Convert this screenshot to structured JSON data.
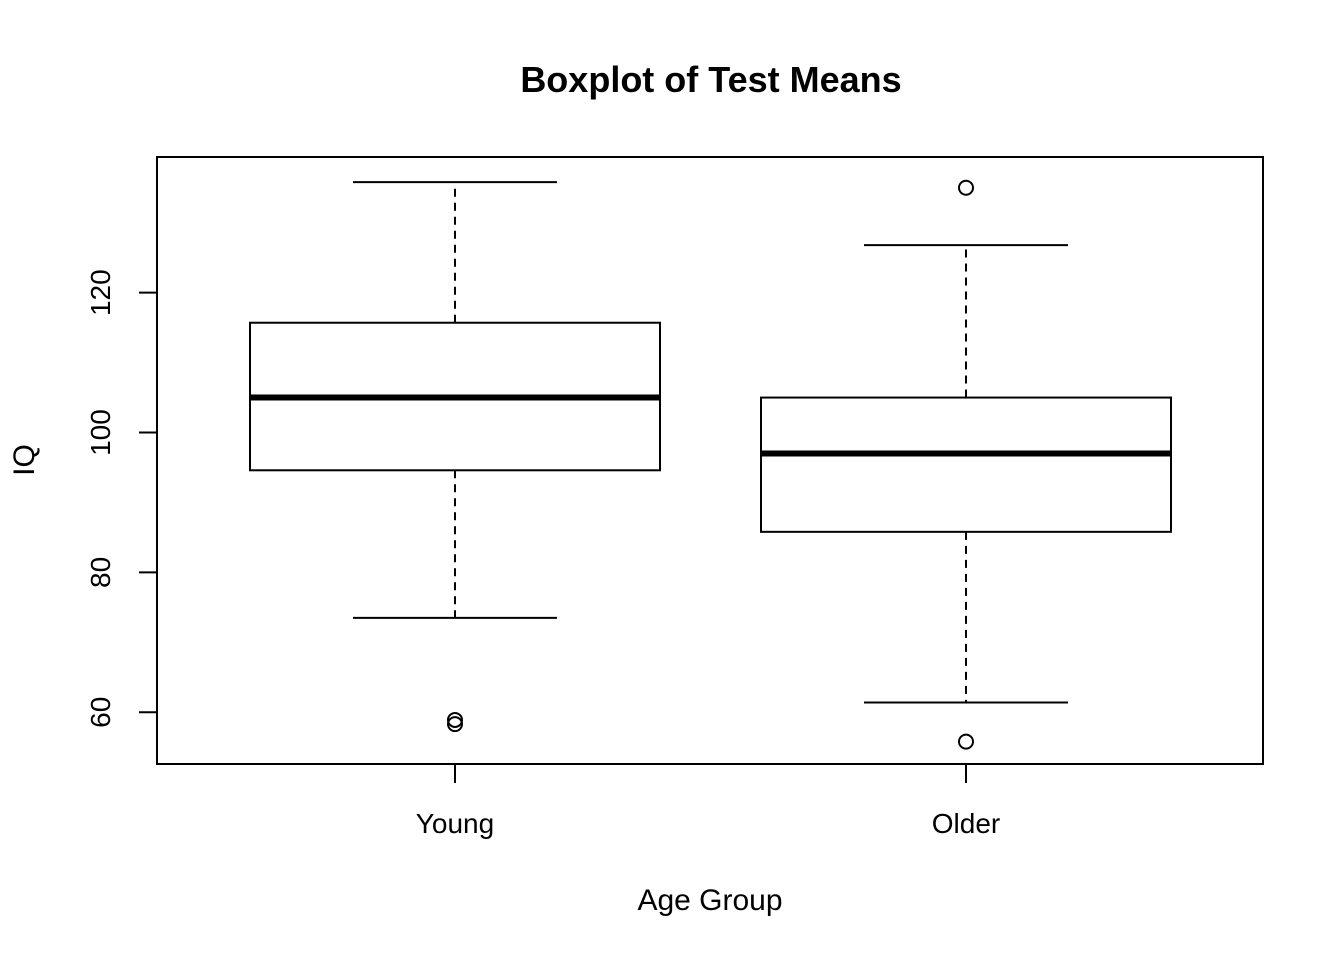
{
  "chart_data": {
    "type": "boxplot",
    "title": "Boxplot of Test Means",
    "xlabel": "Age Group",
    "ylabel": "IQ",
    "ylim": [
      52.6,
      139.4
    ],
    "yticks": [
      60,
      80,
      100,
      120
    ],
    "grid": false,
    "categories": [
      "Young",
      "Older"
    ],
    "boxes": [
      {
        "category": "Young",
        "whisker_low": 73.5,
        "q1": 94.6,
        "median": 105.0,
        "q3": 115.7,
        "whisker_high": 135.8,
        "outliers": [
          58.3,
          58.9
        ]
      },
      {
        "category": "Older",
        "whisker_low": 61.4,
        "q1": 85.8,
        "median": 97.0,
        "q3": 105.0,
        "whisker_high": 126.8,
        "outliers": [
          55.8,
          135.0
        ]
      }
    ]
  }
}
